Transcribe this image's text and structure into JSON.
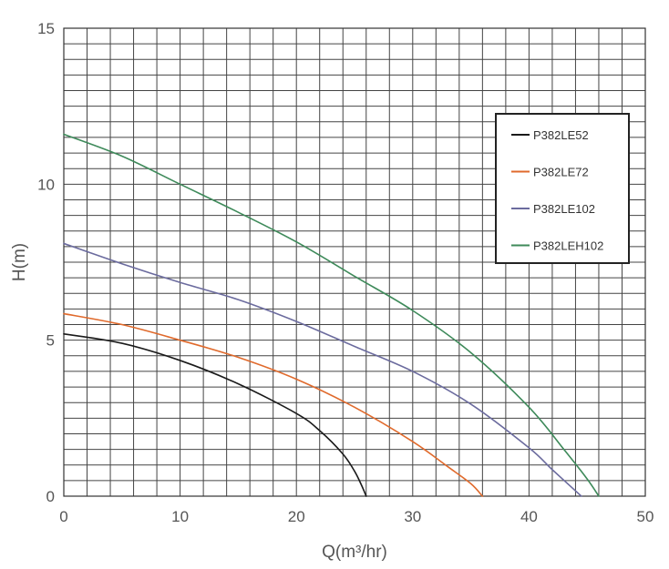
{
  "chart_data": {
    "type": "line",
    "title": "",
    "xlabel": "Q(m³/hr)",
    "ylabel": "H(m)",
    "xlim": [
      0,
      50
    ],
    "ylim": [
      0,
      15
    ],
    "x_ticks": [
      "0",
      "10",
      "20",
      "30",
      "40",
      "50"
    ],
    "y_ticks": [
      "0",
      "5",
      "10",
      "15"
    ],
    "grid": true,
    "legend_position": "top-right",
    "series": [
      {
        "name": "P382LE52",
        "color": "#1a1a1a",
        "points": [
          [
            0,
            5.2
          ],
          [
            5,
            4.9
          ],
          [
            10,
            4.35
          ],
          [
            15,
            3.6
          ],
          [
            20,
            2.65
          ],
          [
            22,
            2.1
          ],
          [
            24,
            1.35
          ],
          [
            25,
            0.8
          ],
          [
            25.6,
            0.35
          ],
          [
            26,
            0.0
          ]
        ]
      },
      {
        "name": "P382LE72",
        "color": "#e06a2c",
        "points": [
          [
            0,
            5.85
          ],
          [
            5,
            5.5
          ],
          [
            10,
            5.0
          ],
          [
            15,
            4.45
          ],
          [
            20,
            3.75
          ],
          [
            25,
            2.85
          ],
          [
            30,
            1.75
          ],
          [
            33,
            0.95
          ],
          [
            35,
            0.4
          ],
          [
            36,
            0.0
          ]
        ]
      },
      {
        "name": "P382LE102",
        "color": "#6b6b9e",
        "points": [
          [
            0,
            8.1
          ],
          [
            5,
            7.45
          ],
          [
            10,
            6.85
          ],
          [
            15,
            6.3
          ],
          [
            20,
            5.6
          ],
          [
            25,
            4.8
          ],
          [
            30,
            4.0
          ],
          [
            35,
            2.95
          ],
          [
            40,
            1.55
          ],
          [
            42,
            0.85
          ],
          [
            44.5,
            0.0
          ]
        ]
      },
      {
        "name": "P382LEH102",
        "color": "#3e8a5a",
        "points": [
          [
            0,
            11.6
          ],
          [
            5,
            10.9
          ],
          [
            10,
            10.0
          ],
          [
            15,
            9.1
          ],
          [
            20,
            8.15
          ],
          [
            25,
            7.05
          ],
          [
            30,
            5.95
          ],
          [
            35,
            4.6
          ],
          [
            40,
            2.85
          ],
          [
            43,
            1.5
          ],
          [
            45,
            0.55
          ],
          [
            46,
            0.0
          ]
        ]
      }
    ]
  }
}
